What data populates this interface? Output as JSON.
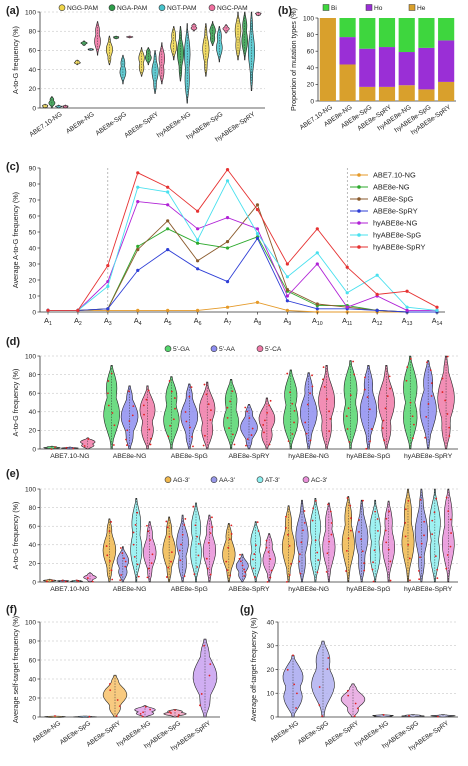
{
  "chart_data": [
    {
      "panel": "(a)",
      "type": "violin",
      "ylabel": "A-to-G frequency (%)",
      "ylim": [
        0,
        100
      ],
      "yticks": [
        0,
        20,
        40,
        60,
        80,
        100
      ],
      "legend": [
        "NGG-PAM",
        "NGA-PAM",
        "NGT-PAM",
        "NGC-PAM"
      ],
      "categories": [
        "ABE7.10-NG",
        "ABE8e-NG",
        "ABE8e-SpG",
        "ABE8e-SpRY",
        "hyABE8e-NG",
        "hyABE8e-SpG",
        "hyABE8e-SpRY"
      ],
      "series": [
        {
          "name": "NGG-PAM",
          "color": "#f0d64a",
          "ranges": [
            [
              0,
              4
            ],
            [
              45,
              50
            ],
            [
              45,
              75
            ],
            [
              33,
              63
            ],
            [
              50,
              85
            ],
            [
              33,
              88
            ],
            [
              50,
              100
            ]
          ]
        },
        {
          "name": "NGA-PAM",
          "color": "#2e9e4a",
          "ranges": [
            [
              0,
              12
            ],
            [
              65,
              70
            ],
            [
              72,
              75
            ],
            [
              45,
              63
            ],
            [
              28,
              85
            ],
            [
              65,
              90
            ],
            [
              50,
              100
            ]
          ]
        },
        {
          "name": "NGT-PAM",
          "color": "#47c4cc",
          "ranges": [
            [
              0,
              3
            ],
            [
              60,
              62
            ],
            [
              25,
              55
            ],
            [
              15,
              60
            ],
            [
              5,
              88
            ],
            [
              48,
              85
            ],
            [
              18,
              100
            ]
          ]
        },
        {
          "name": "NGC-PAM",
          "color": "#f070a0",
          "ranges": [
            [
              0,
              3
            ],
            [
              55,
              90
            ],
            [
              73,
              75
            ],
            [
              25,
              68
            ],
            [
              80,
              88
            ],
            [
              78,
              87
            ],
            [
              96,
              100
            ]
          ]
        }
      ]
    },
    {
      "panel": "(b)",
      "type": "stacked_bar",
      "ylabel": "Proportion of mutation types (%)",
      "ylim": [
        0,
        100
      ],
      "yticks": [
        0,
        20,
        40,
        60,
        80,
        100
      ],
      "legend": [
        "Bi",
        "Ho",
        "He"
      ],
      "categories": [
        "ABE7.10-NG",
        "ABE8e-NG",
        "ABE8e-SpG",
        "ABE8e-SpRY",
        "hyABE8e-NG",
        "hyABE8e-SpG",
        "hyABE8e-SpRY"
      ],
      "series": [
        {
          "name": "He",
          "color": "#d9a02c",
          "values": [
            100,
            44,
            17,
            17,
            19,
            14,
            23
          ]
        },
        {
          "name": "Ho",
          "color": "#9a2fd6",
          "values": [
            0,
            33,
            46,
            48,
            40,
            50,
            50
          ]
        },
        {
          "name": "Bi",
          "color": "#3ed63e",
          "values": [
            0,
            23,
            37,
            35,
            41,
            36,
            27
          ]
        }
      ]
    },
    {
      "panel": "(c)",
      "type": "line",
      "ylabel": "Average A-to-G  frequency (%)",
      "ylim": [
        0,
        90
      ],
      "yticks": [
        0,
        10,
        20,
        30,
        40,
        50,
        60,
        70,
        80,
        90
      ],
      "x": [
        "A1",
        "A2",
        "A3",
        "A4",
        "A5",
        "A6",
        "A7",
        "A8",
        "A9",
        "A10",
        "A11",
        "A12",
        "A13",
        "A14"
      ],
      "series": [
        {
          "name": "ABE7.10-NG",
          "color": "#e59a29",
          "values": [
            1,
            1,
            1,
            1,
            1,
            1,
            3,
            6,
            1,
            0,
            0,
            0,
            0,
            0
          ]
        },
        {
          "name": "ABE8e-NG",
          "color": "#2eaa2e",
          "values": [
            1,
            1,
            2,
            41,
            52,
            43,
            40,
            47,
            13,
            4,
            4,
            1,
            0,
            0
          ]
        },
        {
          "name": "ABE8e-SpG",
          "color": "#8a5a2c",
          "values": [
            1,
            1,
            2,
            39,
            57,
            32,
            44,
            67,
            14,
            5,
            3,
            1,
            0,
            0
          ]
        },
        {
          "name": "ABE8e-SpRY",
          "color": "#2e3ed6",
          "values": [
            1,
            1,
            2,
            26,
            39,
            27,
            19,
            46,
            7,
            2,
            2,
            1,
            0,
            0
          ]
        },
        {
          "name": "hyABE8e-NG",
          "color": "#b021d6",
          "values": [
            1,
            1,
            19,
            69,
            67,
            52,
            59,
            52,
            10,
            30,
            3,
            10,
            1,
            1
          ]
        },
        {
          "name": "hyABE8e-SpG",
          "color": "#49e0ee",
          "values": [
            1,
            1,
            16,
            78,
            75,
            45,
            82,
            49,
            22,
            37,
            12,
            23,
            3,
            1
          ]
        },
        {
          "name": "hyABE8e-SpRY",
          "color": "#e63232",
          "values": [
            1,
            1,
            29,
            87,
            78,
            63,
            89,
            64,
            30,
            52,
            28,
            11,
            13,
            3
          ]
        }
      ]
    },
    {
      "panel": "(d)",
      "type": "violin",
      "ylabel": "A-to-G frequency (%)",
      "ylim": [
        0,
        100
      ],
      "yticks": [
        0,
        20,
        40,
        60,
        80,
        100
      ],
      "legend": [
        "5'-GA",
        "5'-AA",
        "5'-CA"
      ],
      "categories": [
        "ABE7.10-NG",
        "ABE8e-NG",
        "ABE8e-SpG",
        "ABE8e-SpRY",
        "hyABE8e-NG",
        "hyABE8e-SpG",
        "hyABE8e-SpRY"
      ],
      "series": [
        {
          "name": "5'-GA",
          "color": "#55d66e",
          "ranges": [
            [
              0,
              3
            ],
            [
              0,
              90
            ],
            [
              0,
              78
            ],
            [
              0,
              75
            ],
            [
              0,
              85
            ],
            [
              0,
              95
            ],
            [
              0,
              100
            ]
          ]
        },
        {
          "name": "5'-AA",
          "color": "#8e8ef0",
          "ranges": [
            [
              0,
              2
            ],
            [
              0,
              68
            ],
            [
              0,
              70
            ],
            [
              0,
              48
            ],
            [
              0,
              82
            ],
            [
              0,
              90
            ],
            [
              0,
              95
            ]
          ]
        },
        {
          "name": "5'-CA",
          "color": "#f07aa8",
          "ranges": [
            [
              0,
              12
            ],
            [
              0,
              68
            ],
            [
              0,
              72
            ],
            [
              0,
              55
            ],
            [
              0,
              90
            ],
            [
              0,
              90
            ],
            [
              0,
              100
            ]
          ]
        }
      ]
    },
    {
      "panel": "(e)",
      "type": "violin",
      "ylabel": "A-to-G frequency (%)",
      "ylim": [
        0,
        100
      ],
      "yticks": [
        0,
        20,
        40,
        60,
        80,
        100
      ],
      "legend": [
        "AG-3'",
        "AA-3'",
        "AT-3'",
        "AC-3'"
      ],
      "categories": [
        "ABE7.10-NG",
        "ABE8e-NG",
        "ABE8e-SpG",
        "ABE8e-SpRY",
        "hyABE8e-NG",
        "hyABE8e-SpG",
        "hyABE8e-SpRY"
      ],
      "series": [
        {
          "name": "AG-3'",
          "color": "#f0b84e",
          "ranges": [
            [
              0,
              3
            ],
            [
              0,
              68
            ],
            [
              0,
              70
            ],
            [
              0,
              63
            ],
            [
              0,
              82
            ],
            [
              0,
              92
            ],
            [
              0,
              100
            ]
          ]
        },
        {
          "name": "AA-3'",
          "color": "#9898e8",
          "ranges": [
            [
              0,
              2
            ],
            [
              0,
              38
            ],
            [
              0,
              72
            ],
            [
              0,
              30
            ],
            [
              0,
              88
            ],
            [
              0,
              88
            ],
            [
              0,
              100
            ]
          ]
        },
        {
          "name": "AT-3'",
          "color": "#8ef0f0",
          "ranges": [
            [
              0,
              2
            ],
            [
              0,
              90
            ],
            [
              0,
              85
            ],
            [
              0,
              65
            ],
            [
              0,
              90
            ],
            [
              0,
              88
            ],
            [
              0,
              100
            ]
          ]
        },
        {
          "name": "AC-3'",
          "color": "#e890d8",
          "ranges": [
            [
              0,
              10
            ],
            [
              0,
              65
            ],
            [
              0,
              72
            ],
            [
              0,
              52
            ],
            [
              0,
              85
            ],
            [
              0,
              87
            ],
            [
              0,
              100
            ]
          ]
        }
      ]
    },
    {
      "panel": "(f)",
      "type": "violin",
      "ylabel": "Average self-target frequency (%)",
      "ylim": [
        0,
        100
      ],
      "yticks": [
        0,
        20,
        40,
        60,
        80,
        100
      ],
      "categories": [
        "ABE8e-NG",
        "ABE8e-SpG",
        "ABE8e-SpRY",
        "hyABE8e-NG",
        "hyABE8e-SpG",
        "hyABE8e-SpRY"
      ],
      "ranges": [
        [
          0,
          1
        ],
        [
          0,
          1
        ],
        [
          0,
          44
        ],
        [
          0,
          12
        ],
        [
          0,
          8
        ],
        [
          0,
          82
        ]
      ]
    },
    {
      "panel": "(g)",
      "type": "violin",
      "ylabel": "Average off-target frequency (%)",
      "ylim": [
        0,
        40
      ],
      "yticks": [
        0,
        10,
        20,
        30,
        40
      ],
      "categories": [
        "ABE8e-NG",
        "ABE8e-SpG",
        "ABE8e-SpRY",
        "hyABE8e-NG",
        "hyABE8e-SpG",
        "hyABE8e-SpRY"
      ],
      "ranges": [
        [
          0,
          26
        ],
        [
          0,
          32
        ],
        [
          0,
          14
        ],
        [
          0,
          1
        ],
        [
          0,
          1
        ],
        [
          0,
          1
        ]
      ]
    }
  ]
}
